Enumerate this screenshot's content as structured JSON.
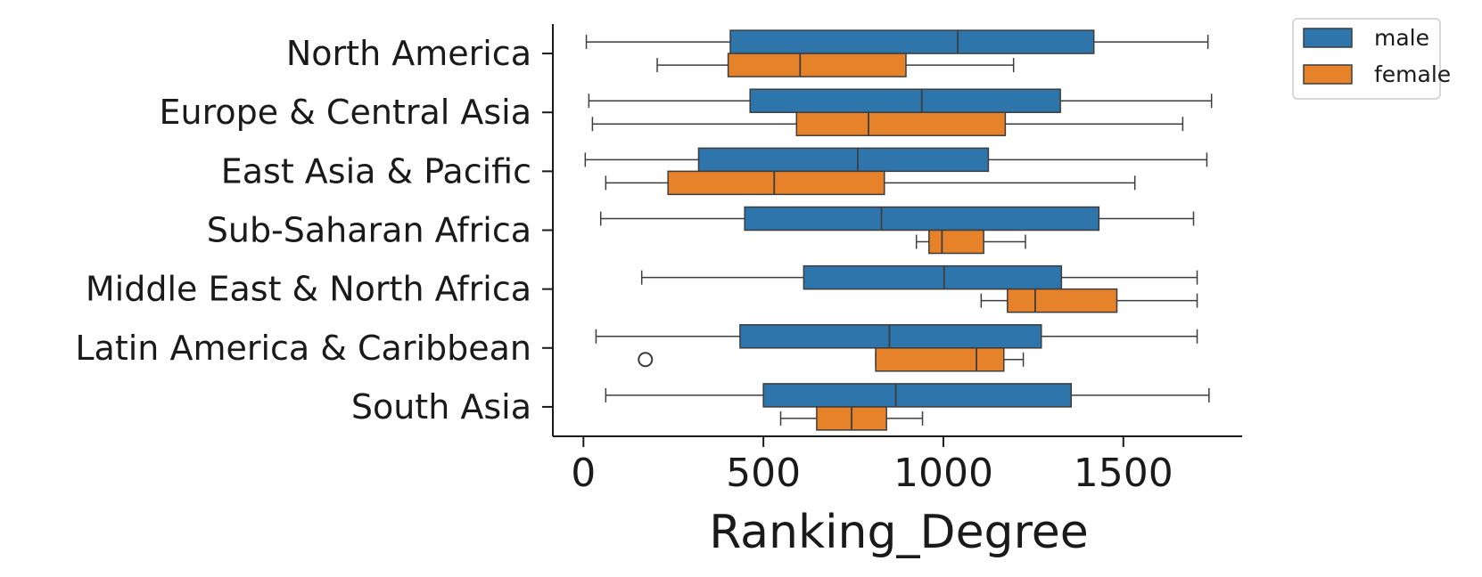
{
  "chart_data": {
    "type": "box",
    "orientation": "horizontal",
    "title": "",
    "xlabel": "Ranking_Degree",
    "ylabel": "",
    "xlim": [
      -85,
      1830
    ],
    "xticks": [
      0,
      500,
      1000,
      1500
    ],
    "xtick_labels": [
      "0",
      "500",
      "1000",
      "1500"
    ],
    "grid": false,
    "legend": {
      "placement": "outside-top-right"
    },
    "categories": [
      "North America",
      "Europe & Central Asia",
      "East Asia & Pacific",
      "Sub-Saharan Africa",
      "Middle East & North Africa",
      "Latin America & Caribbean",
      "South Asia"
    ],
    "series": [
      {
        "name": "male",
        "color": "#2e75ab",
        "boxes": [
          {
            "whislo": 8,
            "q1": 408,
            "med": 1040,
            "q3": 1418,
            "whishi": 1735,
            "fliers": []
          },
          {
            "whislo": 15,
            "q1": 463,
            "med": 940,
            "q3": 1325,
            "whishi": 1745,
            "fliers": []
          },
          {
            "whislo": 5,
            "q1": 320,
            "med": 762,
            "q3": 1125,
            "whishi": 1732,
            "fliers": []
          },
          {
            "whislo": 48,
            "q1": 448,
            "med": 828,
            "q3": 1432,
            "whishi": 1695,
            "fliers": []
          },
          {
            "whislo": 162,
            "q1": 612,
            "med": 1002,
            "q3": 1328,
            "whishi": 1705,
            "fliers": []
          },
          {
            "whislo": 35,
            "q1": 435,
            "med": 850,
            "q3": 1272,
            "whishi": 1705,
            "fliers": []
          },
          {
            "whislo": 62,
            "q1": 500,
            "med": 868,
            "q3": 1355,
            "whishi": 1738,
            "fliers": []
          }
        ]
      },
      {
        "name": "female",
        "color": "#e6822a",
        "boxes": [
          {
            "whislo": 205,
            "q1": 402,
            "med": 602,
            "q3": 896,
            "whishi": 1195,
            "fliers": []
          },
          {
            "whislo": 25,
            "q1": 592,
            "med": 792,
            "q3": 1172,
            "whishi": 1665,
            "fliers": []
          },
          {
            "whislo": 62,
            "q1": 235,
            "med": 530,
            "q3": 836,
            "whishi": 1532,
            "fliers": []
          },
          {
            "whislo": 925,
            "q1": 960,
            "med": 996,
            "q3": 1112,
            "whishi": 1228,
            "fliers": []
          },
          {
            "whislo": 1105,
            "q1": 1178,
            "med": 1255,
            "q3": 1482,
            "whishi": 1705,
            "fliers": []
          },
          {
            "whislo": 812,
            "q1": 812,
            "med": 1092,
            "q3": 1168,
            "whishi": 1222,
            "fliers": [
              172
            ]
          },
          {
            "whislo": 548,
            "q1": 648,
            "med": 745,
            "q3": 842,
            "whishi": 942,
            "fliers": []
          }
        ]
      }
    ]
  }
}
